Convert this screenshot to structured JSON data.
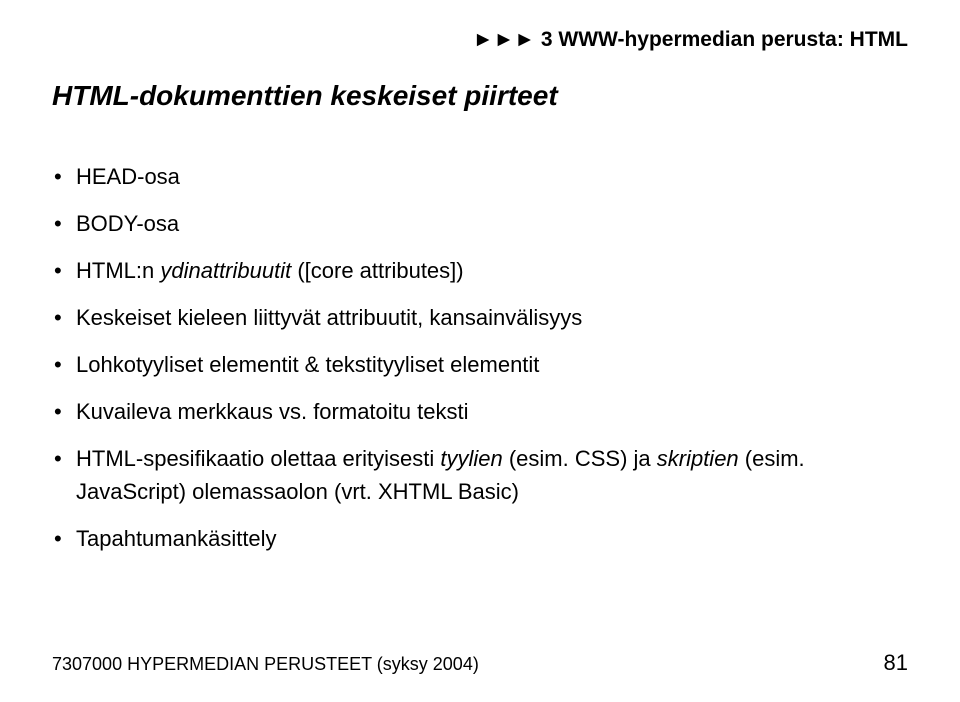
{
  "header": {
    "arrows": "►►►",
    "text": " 3 WWW-hypermedian perusta: HTML"
  },
  "title": "HTML-dokumenttien keskeiset piirteet",
  "bullets": [
    {
      "segments": [
        {
          "text": "HEAD-osa",
          "italic": false
        }
      ]
    },
    {
      "segments": [
        {
          "text": "BODY-osa",
          "italic": false
        }
      ]
    },
    {
      "segments": [
        {
          "text": "HTML:n ",
          "italic": false
        },
        {
          "text": "ydinattribuutit",
          "italic": true
        },
        {
          "text": " ([core attributes])",
          "italic": false
        }
      ]
    },
    {
      "segments": [
        {
          "text": "Keskeiset kieleen liittyvät attribuutit, kansainvälisyys",
          "italic": false
        }
      ]
    },
    {
      "segments": [
        {
          "text": "Lohkotyyliset elementit & tekstityyliset elementit",
          "italic": false
        }
      ]
    },
    {
      "segments": [
        {
          "text": "Kuvaileva merkkaus vs. formatoitu teksti",
          "italic": false
        }
      ]
    },
    {
      "segments": [
        {
          "text": "HTML-spesifikaatio olettaa erityisesti ",
          "italic": false
        },
        {
          "text": "tyylien",
          "italic": true
        },
        {
          "text": " (esim. CSS) ja ",
          "italic": false
        },
        {
          "text": "skriptien",
          "italic": true
        },
        {
          "text": " (esim. JavaScript) olemassaolon (vrt. XHTML Basic)",
          "italic": false
        }
      ]
    },
    {
      "segments": [
        {
          "text": "Tapahtumankäsittely",
          "italic": false
        }
      ]
    }
  ],
  "footer": {
    "left": "7307000 HYPERMEDIAN PERUSTEET (syksy 2004)",
    "pageNumber": "81"
  }
}
